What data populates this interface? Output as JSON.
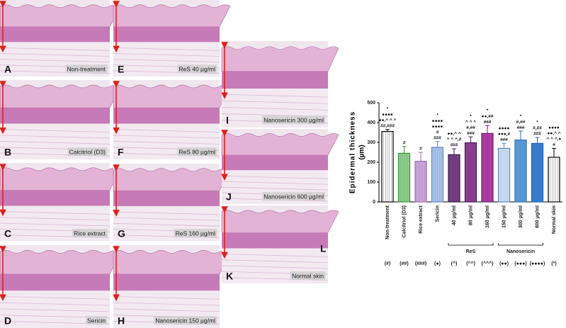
{
  "panels": [
    {
      "letter": "A",
      "caption": "Non-treatment"
    },
    {
      "letter": "B",
      "caption": "Calcitriol (D3)"
    },
    {
      "letter": "C",
      "caption": "Rice extract"
    },
    {
      "letter": "D",
      "caption": "Sericin"
    },
    {
      "letter": "E",
      "caption": "ReS 40 µg/ml"
    },
    {
      "letter": "F",
      "caption": "ReS 80 µg/ml"
    },
    {
      "letter": "G",
      "caption": "ReS 160 µg/ml"
    },
    {
      "letter": "H",
      "caption": "Nanosericin 150 µg/ml"
    },
    {
      "letter": "I",
      "caption": "Nanosericin 300 µg/ml"
    },
    {
      "letter": "J",
      "caption": "Nanosericin 600 µg/ml"
    },
    {
      "letter": "K",
      "caption": "Normal skin"
    }
  ],
  "chart_data": {
    "type": "bar",
    "panel_letter": "L",
    "y_label": "Epidermal thickness",
    "y_unit": "(µm)",
    "categories": [
      "Non-treatment",
      "Calcitriol (D3)",
      "Rice extract",
      "Sericin",
      "40 µg/ml",
      "80 µg/ml",
      "160 µg/ml",
      "150 µg/ml",
      "300 µg/ml",
      "600 µg/ml",
      "Normal skin"
    ],
    "values": [
      355,
      245,
      205,
      275,
      238,
      298,
      345,
      270,
      312,
      295,
      225
    ],
    "errors": [
      10,
      35,
      45,
      30,
      30,
      30,
      40,
      25,
      45,
      30,
      45
    ],
    "colors": [
      "#ffffff",
      "#8fd18f",
      "#c9a6d9",
      "#a9c4e8",
      "#7a3f8a",
      "#8e3f93",
      "#b03fa6",
      "#cfe0f5",
      "#5b9bd5",
      "#3c7fd0",
      "#ffffff"
    ],
    "edge_colors": [
      "#000000",
      "#3a8f3a",
      "#9a6bb0",
      "#5f86c0",
      "#3a1a45",
      "#4a1a55",
      "#6a1a66",
      "#5f86c0",
      "#2f6fb5",
      "#1f5fb0",
      "#000000"
    ],
    "annotations": [
      [
        "*",
        "●●●●",
        "●●,^ ^ ^",
        "##,###"
      ],
      [
        "#"
      ],
      [
        "#"
      ],
      [
        "*",
        "●●●●",
        "●●●●",
        "#",
        "###"
      ],
      [
        "●●,^ ^",
        "^ ^ ^,#",
        "###"
      ],
      [
        "*",
        "^ ^ ^",
        "#,##",
        "###"
      ],
      [
        "*",
        "●●,##",
        "###"
      ],
      [
        "●●●●",
        "●●●,#",
        "###"
      ],
      [
        "*",
        "#,##",
        "###"
      ],
      [
        "*",
        "#,##",
        "###"
      ],
      [
        "●●●●",
        "●●,^ ^",
        "^ ^ ^,●",
        "#"
      ]
    ],
    "groups": [
      {
        "name": "ReS",
        "from": 4,
        "to": 6
      },
      {
        "name": "Nanosericin",
        "from": 7,
        "to": 9
      }
    ],
    "symbols": [
      "(#)",
      "(##)",
      "(###)",
      "(●)",
      "(^)",
      "(^^)",
      "(^^^)",
      "(●●)",
      "(●●●)",
      "(●●●●)",
      "(*)"
    ],
    "ylim": [
      0,
      500
    ],
    "yticks": [
      0,
      100,
      200,
      300,
      400,
      500
    ]
  }
}
